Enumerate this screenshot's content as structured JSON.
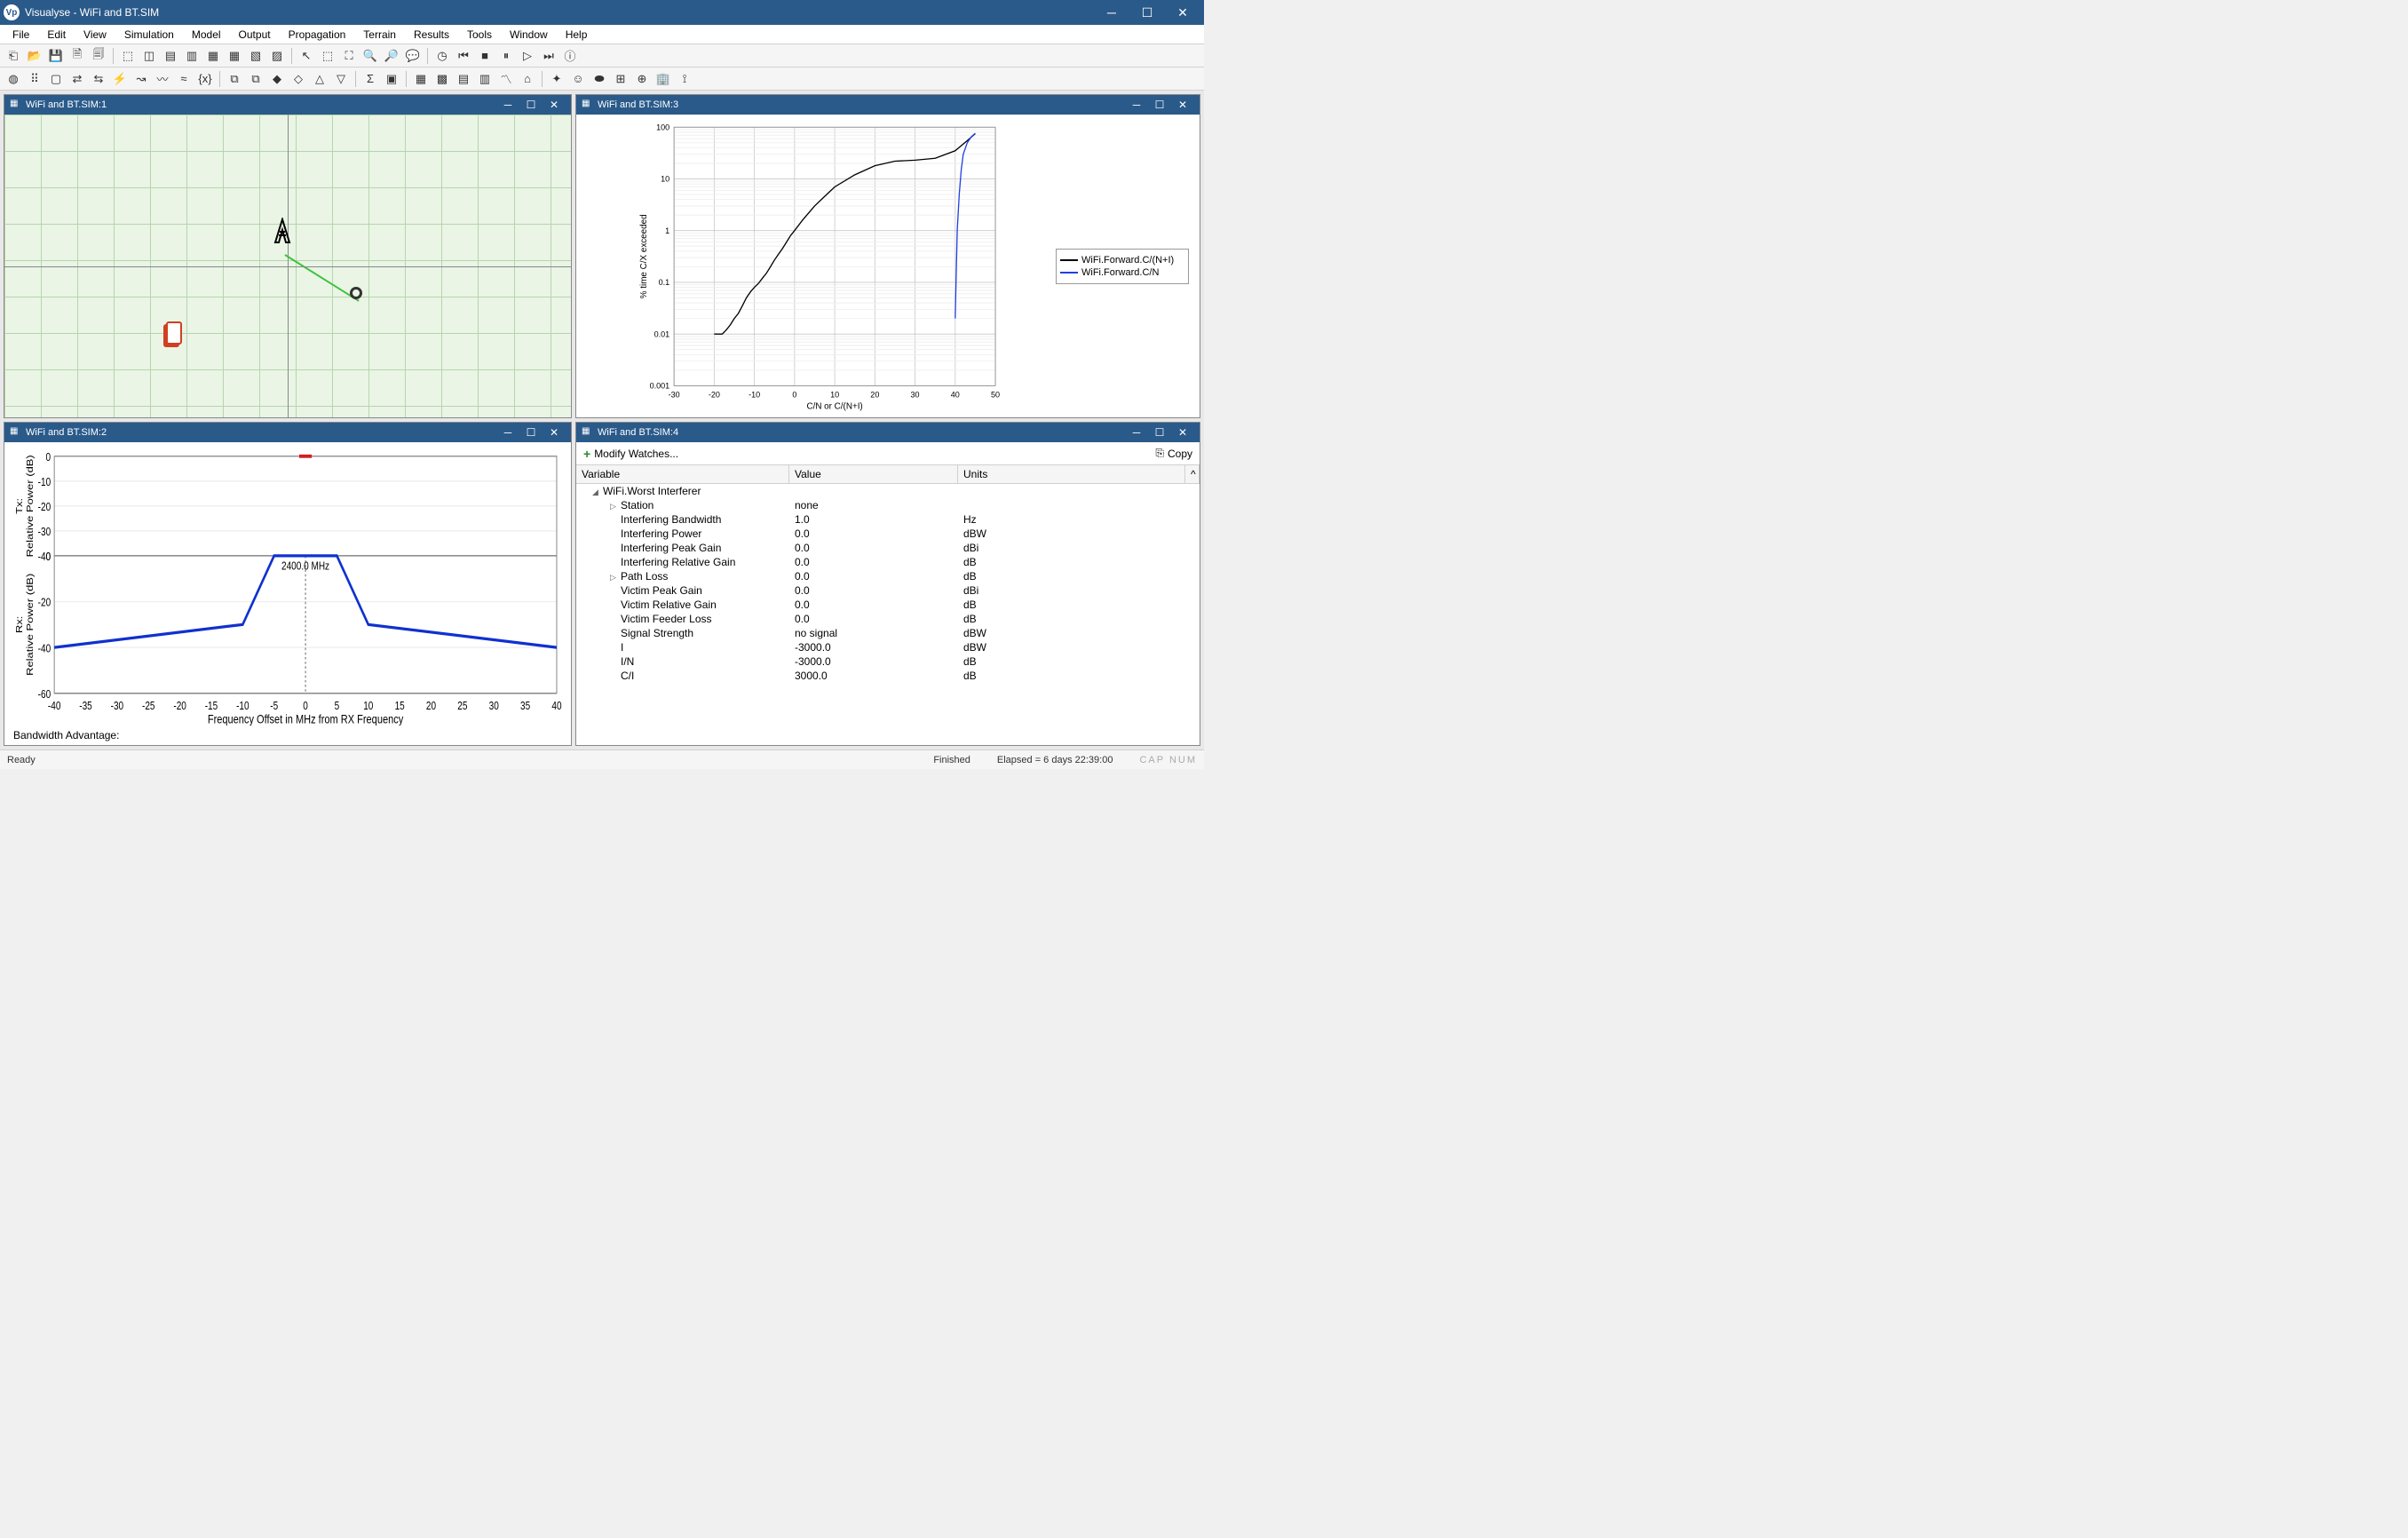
{
  "app": {
    "title": "Visualyse - WiFi and BT.SIM",
    "icon_letter": "Vp"
  },
  "menubar": [
    "File",
    "Edit",
    "View",
    "Simulation",
    "Model",
    "Output",
    "Propagation",
    "Terrain",
    "Results",
    "Tools",
    "Window",
    "Help"
  ],
  "toolbar_row1": [
    "new",
    "open",
    "save",
    "doc1",
    "doc2",
    "|",
    "win1",
    "win2",
    "win3",
    "win4",
    "win5",
    "table",
    "win6",
    "win7",
    "|",
    "arrow",
    "select",
    "zoomarea",
    "zoomin",
    "zoomout",
    "speech",
    "|",
    "clock",
    "skipback",
    "stop",
    "pause",
    "play",
    "skipfwd",
    "info"
  ],
  "toolbar_row2": [
    "world",
    "dots",
    "box",
    "link1",
    "link2",
    "flash",
    "path",
    "wave1",
    "wave2",
    "fx",
    "|",
    "copy1",
    "copy2",
    "node1",
    "node2",
    "node3",
    "node4",
    "|",
    "sigma",
    "sheet",
    "|",
    "grid1",
    "grid2",
    "grid3",
    "bar",
    "line",
    "house",
    "|",
    "spark",
    "person",
    "blob",
    "add1",
    "add2",
    "bldg",
    "ant"
  ],
  "pane1": {
    "title": "WiFi and BT.SIM:1"
  },
  "pane2": {
    "title": "WiFi and BT.SIM:2",
    "footer": "Bandwidth Advantage:",
    "chart": {
      "xlabel": "Frequency Offset in MHz from RX Frequency",
      "ylabel_top": "Tx:\nRelative Power (dB)",
      "ylabel_bot": "Rx:\nRelative Power (dB)",
      "center_label": "2400.0 MHz",
      "xlim": [
        -40,
        40
      ],
      "xtick_step": 5,
      "top_ylim": [
        -40,
        0
      ],
      "top_ytick_step": 10,
      "bot_ylim": [
        -60,
        0
      ],
      "bot_ytick_step": 20,
      "top_series": {
        "color": "#d02020",
        "points": [
          [
            -1,
            0
          ],
          [
            1,
            0
          ]
        ]
      },
      "bot_series": {
        "color": "#1030d0",
        "points": [
          [
            -40,
            -40
          ],
          [
            -10,
            -30
          ],
          [
            -5,
            0
          ],
          [
            5,
            0
          ],
          [
            10,
            -30
          ],
          [
            40,
            -40
          ]
        ]
      },
      "axis_color": "#888",
      "grid_color": "#ddd",
      "bg_color": "#ffffff",
      "label_fontsize": 11
    }
  },
  "pane3": {
    "title": "WiFi and BT.SIM:3",
    "chart": {
      "type": "cdf-loglinear",
      "xlabel": "C/N or C/(N+I)",
      "ylabel": "% time C/X exceeded",
      "xlim": [
        -30,
        50
      ],
      "xtick_step": 10,
      "ylim": [
        0.001,
        100
      ],
      "ylog": true,
      "yticks": [
        0.001,
        0.01,
        0.1,
        1,
        10,
        100
      ],
      "grid_color": "#c8c8c8",
      "bg": "#ffffff",
      "series": [
        {
          "name": "WiFi.Forward.C/(N+I)",
          "color": "#000000",
          "points": [
            [
              -20,
              0.01
            ],
            [
              -18,
              0.01
            ],
            [
              -17,
              0.012
            ],
            [
              -16,
              0.015
            ],
            [
              -15,
              0.02
            ],
            [
              -14,
              0.025
            ],
            [
              -13,
              0.035
            ],
            [
              -12,
              0.05
            ],
            [
              -11,
              0.065
            ],
            [
              -10,
              0.08
            ],
            [
              -9,
              0.095
            ],
            [
              -8,
              0.12
            ],
            [
              -7,
              0.15
            ],
            [
              -6,
              0.2
            ],
            [
              -5,
              0.27
            ],
            [
              -4,
              0.35
            ],
            [
              -3,
              0.45
            ],
            [
              -2,
              0.6
            ],
            [
              -1,
              0.8
            ],
            [
              0,
              1.0
            ],
            [
              2,
              1.6
            ],
            [
              5,
              3.0
            ],
            [
              8,
              5.0
            ],
            [
              10,
              7.0
            ],
            [
              15,
              12
            ],
            [
              20,
              18
            ],
            [
              25,
              22
            ],
            [
              30,
              23
            ],
            [
              35,
              25
            ],
            [
              40,
              35
            ],
            [
              43,
              55
            ],
            [
              45,
              75
            ]
          ]
        },
        {
          "name": "WiFi.Forward.C/N",
          "color": "#2040e0",
          "points": [
            [
              40,
              0.02
            ],
            [
              40.2,
              0.1
            ],
            [
              40.5,
              1
            ],
            [
              41,
              5
            ],
            [
              41.5,
              15
            ],
            [
              42,
              30
            ],
            [
              43,
              50
            ],
            [
              44,
              65
            ],
            [
              45,
              76
            ]
          ]
        }
      ]
    }
  },
  "pane4": {
    "title": "WiFi and BT.SIM:4",
    "modify_label": "Modify Watches...",
    "copy_label": "Copy",
    "columns": [
      "Variable",
      "Value",
      "Units"
    ],
    "group": "WiFi.Worst Interferer",
    "rows": [
      {
        "k": "Station",
        "v": "none",
        "u": "",
        "expand": true
      },
      {
        "k": "Interfering Bandwidth",
        "v": "1.0",
        "u": "Hz"
      },
      {
        "k": "Interfering Power",
        "v": "0.0",
        "u": "dBW"
      },
      {
        "k": "Interfering Peak Gain",
        "v": "0.0",
        "u": "dBi"
      },
      {
        "k": "Interfering Relative Gain",
        "v": "0.0",
        "u": "dB"
      },
      {
        "k": "Path Loss",
        "v": "0.0",
        "u": "dB",
        "expand": true
      },
      {
        "k": "Victim Peak Gain",
        "v": "0.0",
        "u": "dBi"
      },
      {
        "k": "Victim Relative Gain",
        "v": "0.0",
        "u": "dB"
      },
      {
        "k": "Victim Feeder Loss",
        "v": "0.0",
        "u": "dB"
      },
      {
        "k": "Signal Strength",
        "v": "no signal",
        "u": "dBW"
      },
      {
        "k": "I",
        "v": "-3000.0",
        "u": "dBW"
      },
      {
        "k": "I/N",
        "v": "-3000.0",
        "u": "dB"
      },
      {
        "k": "C/I",
        "v": "3000.0",
        "u": "dB"
      }
    ]
  },
  "statusbar": {
    "left": "Ready",
    "mid": "Finished",
    "right": "Elapsed = 6 days 22:39:00",
    "caps": "CAP NUM"
  }
}
